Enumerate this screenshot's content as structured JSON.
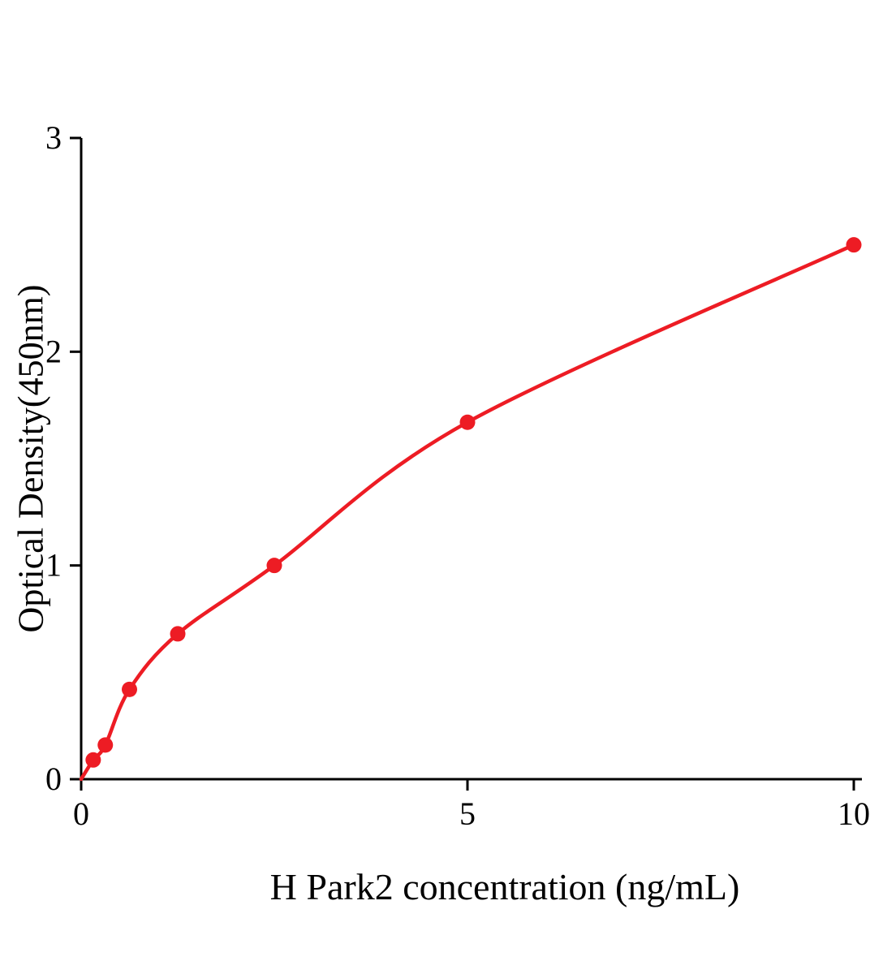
{
  "chart_data": {
    "type": "scatter",
    "title": "",
    "xlabel": "H Park2 concentration (ng/mL)",
    "ylabel": "Optical Density(450nm)",
    "x": [
      0.156,
      0.3125,
      0.625,
      1.25,
      2.5,
      5,
      10
    ],
    "y": [
      0.09,
      0.16,
      0.42,
      0.68,
      1.0,
      1.67,
      2.5
    ],
    "xlim": [
      0,
      10
    ],
    "ylim": [
      0,
      3
    ],
    "xticks": [
      0,
      5,
      10
    ],
    "yticks": [
      0,
      1,
      2,
      3
    ],
    "grid": false,
    "legend": null,
    "curve_starts_at_origin": true,
    "marker_color": "#ed1c24",
    "line_color": "#ed1c24",
    "axis_color": "#000000"
  }
}
